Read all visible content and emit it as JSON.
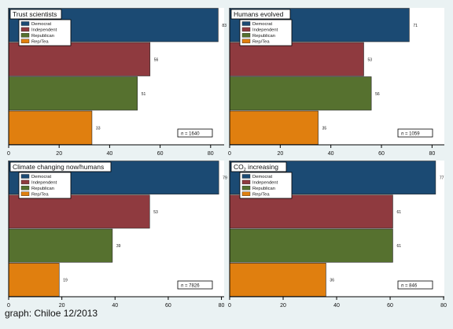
{
  "colors": {
    "background": "#eaf2f3",
    "plot_background": "#ffffff",
    "Democrat": "#1b4a73",
    "Independent": "#8f3a3f",
    "Republican": "#56712f",
    "Rep/Tea": "#e07f0f"
  },
  "caption": "graph: Chiloe 12/2013",
  "chart_data": [
    {
      "type": "bar",
      "orientation": "horizontal",
      "title": "Trust scientists",
      "categories": [
        "Democrat",
        "Independent",
        "Republican",
        "Rep/Tea"
      ],
      "values": [
        83,
        56,
        51,
        33
      ],
      "value_labels": [
        "83",
        "56",
        "51",
        "33"
      ],
      "n_label": "n",
      "n_value": "= 1640",
      "xlim": [
        0,
        85
      ],
      "xticks": [
        0,
        20,
        40,
        60,
        80
      ],
      "legend": [
        "Democrat",
        "Independent",
        "Republican",
        "Rep/Tea"
      ],
      "legend_position": "top-left"
    },
    {
      "type": "bar",
      "orientation": "horizontal",
      "title": "Humans evolved",
      "categories": [
        "Democrat",
        "Independent",
        "Republican",
        "Rep/Tea"
      ],
      "values": [
        71,
        53,
        56,
        35
      ],
      "value_labels": [
        "71",
        "53",
        "56",
        "35"
      ],
      "n_label": "n",
      "n_value": "= 1059",
      "xlim": [
        0,
        85
      ],
      "xticks": [
        0,
        20,
        40,
        60,
        80
      ],
      "legend": [
        "Democrat",
        "Independent",
        "Republican",
        "Rep/Tea"
      ],
      "legend_position": "top-left"
    },
    {
      "type": "bar",
      "orientation": "horizontal",
      "title": "Climate changing now/humans",
      "categories": [
        "Democrat",
        "Independent",
        "Republican",
        "Rep/Tea"
      ],
      "values": [
        79,
        53,
        39,
        19
      ],
      "value_labels": [
        "79",
        "53",
        "39",
        "19"
      ],
      "n_label": "n",
      "n_value": "= 7826",
      "xlim": [
        0,
        82
      ],
      "xticks": [
        0,
        20,
        40,
        60,
        80
      ],
      "legend": [
        "Democrat",
        "Independent",
        "Republican",
        "Rep/Tea"
      ],
      "legend_position": "top-left"
    },
    {
      "type": "bar",
      "orientation": "horizontal",
      "title": "CO2 increasing",
      "title_main": "CO",
      "title_sub": "2",
      "title_rest": " increasing",
      "categories": [
        "Democrat",
        "Independent",
        "Republican",
        "Rep/Tea"
      ],
      "values": [
        77,
        61,
        61,
        36
      ],
      "value_labels": [
        "77",
        "61",
        "61",
        "36"
      ],
      "n_label": "n",
      "n_value": "= 846",
      "xlim": [
        0,
        82
      ],
      "xticks": [
        0,
        20,
        40,
        60,
        80
      ],
      "legend": [
        "Democrat",
        "Independent",
        "Republican",
        "Rep/Tea"
      ],
      "legend_position": "top-left"
    }
  ]
}
